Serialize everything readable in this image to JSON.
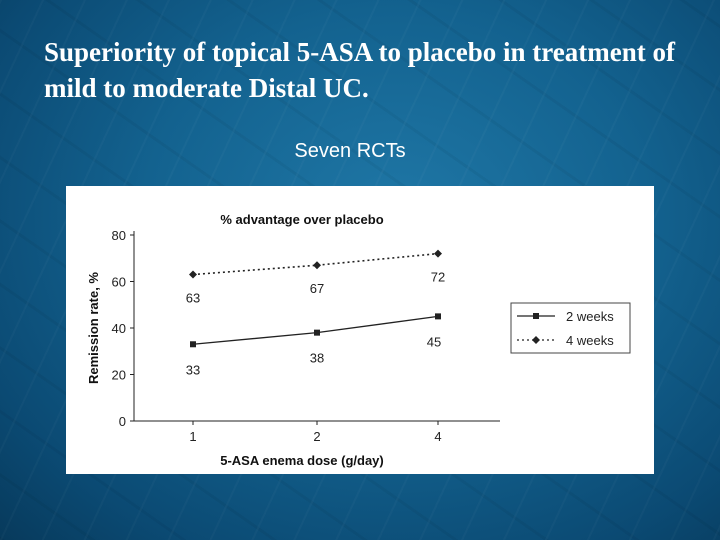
{
  "slide": {
    "title": "Superiority of topical 5-ASA to placebo in treatment of mild to moderate Distal UC.",
    "subtitle": "Seven RCTs"
  },
  "chart_data": {
    "type": "line",
    "title": "% advantage over placebo",
    "xlabel": "5-ASA enema dose (g/day)",
    "ylabel": "Remission rate, %",
    "categories": [
      "1",
      "2",
      "4"
    ],
    "ylim": [
      0,
      80
    ],
    "yticks": [
      0,
      20,
      40,
      60,
      80
    ],
    "grid": false,
    "legend_position": "right",
    "series": [
      {
        "name": "2 weeks",
        "values": [
          33,
          38,
          45
        ],
        "style": "solid",
        "marker": "square",
        "color": "#222222"
      },
      {
        "name": "4 weeks",
        "values": [
          63,
          67,
          72
        ],
        "style": "dotted",
        "marker": "diamond",
        "color": "#222222"
      }
    ]
  }
}
